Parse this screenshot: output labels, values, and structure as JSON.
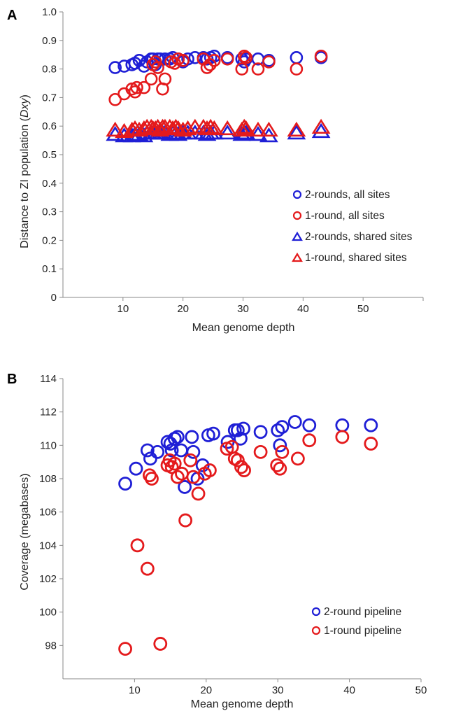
{
  "chart_data": [
    {
      "type": "scatter",
      "panel": "A",
      "xlabel": "Mean genome depth",
      "ylabel": "Distance to ZI population (Dxy)",
      "xlim": [
        0,
        60
      ],
      "ylim": [
        0,
        1.0
      ],
      "x_ticks": [
        "10",
        "20",
        "30",
        "40",
        "50"
      ],
      "x_tick_values": [
        10,
        20,
        30,
        40,
        50
      ],
      "y_ticks": [
        "0",
        "0.1",
        "0.2",
        "0.3",
        "0.4",
        "0.5",
        "0.6",
        "0.7",
        "0.8",
        "0.9",
        "1.0"
      ],
      "y_tick_values": [
        0,
        0.1,
        0.2,
        0.3,
        0.4,
        0.5,
        0.6,
        0.7,
        0.8,
        0.9,
        1.0
      ],
      "legend_position": "right",
      "series": [
        {
          "name": "2-rounds, all sites",
          "marker": "circle",
          "color": "#1f1fd6",
          "x": [
            8.7,
            10.2,
            11.5,
            12.0,
            12.7,
            13.5,
            14.0,
            14.7,
            15.0,
            15.4,
            15.8,
            16.2,
            17.0,
            17.8,
            18.3,
            19.2,
            20.0,
            20.8,
            22.0,
            23.4,
            24.0,
            24.6,
            25.2,
            27.4,
            29.8,
            30.2,
            30.5,
            32.5,
            34.3,
            38.9,
            43.0
          ],
          "y": [
            0.805,
            0.81,
            0.815,
            0.82,
            0.83,
            0.81,
            0.825,
            0.835,
            0.835,
            0.815,
            0.835,
            0.835,
            0.835,
            0.835,
            0.84,
            0.835,
            0.825,
            0.835,
            0.84,
            0.84,
            0.835,
            0.84,
            0.845,
            0.84,
            0.835,
            0.825,
            0.835,
            0.835,
            0.83,
            0.84,
            0.84
          ]
        },
        {
          "name": "1-round, all sites",
          "marker": "circle",
          "color": "#e41a1c",
          "x": [
            8.7,
            10.2,
            11.5,
            12.0,
            12.3,
            13.5,
            14.7,
            15.0,
            15.4,
            15.8,
            16.6,
            17.0,
            18.0,
            18.6,
            19.2,
            20.0,
            23.4,
            24.0,
            24.5,
            25.2,
            27.4,
            29.8,
            30.2,
            30.5,
            32.5,
            34.3,
            38.9,
            43.0
          ],
          "y": [
            0.693,
            0.713,
            0.73,
            0.72,
            0.735,
            0.735,
            0.765,
            0.815,
            0.825,
            0.805,
            0.73,
            0.765,
            0.825,
            0.82,
            0.835,
            0.83,
            0.835,
            0.805,
            0.815,
            0.83,
            0.835,
            0.8,
            0.845,
            0.84,
            0.8,
            0.825,
            0.8,
            0.845
          ]
        },
        {
          "name": "2-rounds, shared sites",
          "marker": "triangle",
          "color": "#1f1fd6",
          "x": [
            8.7,
            10.2,
            11.5,
            12.0,
            12.7,
            13.5,
            14.0,
            14.7,
            15.0,
            15.4,
            15.8,
            16.2,
            16.6,
            17.0,
            17.8,
            18.3,
            18.8,
            19.2,
            20.0,
            20.8,
            22.0,
            23.4,
            24.0,
            24.6,
            25.2,
            27.4,
            29.8,
            30.2,
            30.5,
            32.5,
            34.3,
            38.9,
            43.0
          ],
          "y": [
            0.57,
            0.565,
            0.565,
            0.57,
            0.57,
            0.565,
            0.575,
            0.575,
            0.575,
            0.575,
            0.575,
            0.575,
            0.575,
            0.575,
            0.57,
            0.575,
            0.575,
            0.57,
            0.575,
            0.575,
            0.575,
            0.575,
            0.57,
            0.575,
            0.575,
            0.575,
            0.57,
            0.575,
            0.575,
            0.57,
            0.565,
            0.575,
            0.58
          ]
        },
        {
          "name": "1-round, shared sites",
          "marker": "triangle",
          "color": "#e41a1c",
          "x": [
            8.7,
            10.2,
            11.5,
            12.0,
            12.7,
            13.5,
            14.0,
            14.7,
            15.0,
            15.4,
            15.8,
            16.2,
            16.6,
            17.0,
            17.8,
            18.3,
            18.8,
            19.2,
            20.0,
            20.8,
            22.0,
            23.4,
            24.0,
            24.6,
            25.2,
            27.4,
            29.8,
            30.2,
            30.5,
            32.5,
            34.3,
            38.9,
            43.0
          ],
          "y": [
            0.585,
            0.58,
            0.585,
            0.59,
            0.585,
            0.59,
            0.595,
            0.595,
            0.59,
            0.59,
            0.595,
            0.585,
            0.595,
            0.595,
            0.595,
            0.59,
            0.595,
            0.59,
            0.585,
            0.59,
            0.595,
            0.595,
            0.59,
            0.595,
            0.59,
            0.59,
            0.585,
            0.595,
            0.59,
            0.585,
            0.585,
            0.585,
            0.595
          ]
        }
      ]
    },
    {
      "type": "scatter",
      "panel": "B",
      "xlabel": "Mean genome depth",
      "ylabel": "Coverage (megabases)",
      "xlim": [
        0,
        50
      ],
      "ylim": [
        96,
        114
      ],
      "x_ticks": [
        "10",
        "20",
        "30",
        "40",
        "50"
      ],
      "x_tick_values": [
        10,
        20,
        30,
        40,
        50
      ],
      "y_ticks": [
        "98",
        "100",
        "102",
        "104",
        "106",
        "108",
        "110",
        "112",
        "114"
      ],
      "y_tick_values": [
        98,
        100,
        102,
        104,
        106,
        108,
        110,
        112,
        114
      ],
      "legend_position": "bottom-right",
      "series": [
        {
          "name": "2-round pipeline",
          "marker": "circle",
          "color": "#1f1fd6",
          "x": [
            8.7,
            10.2,
            11.8,
            12.2,
            13.2,
            14.6,
            15.0,
            15.2,
            15.6,
            16.0,
            16.5,
            17.0,
            18.0,
            18.2,
            18.8,
            19.5,
            20.3,
            21.0,
            23.0,
            24.0,
            24.4,
            24.8,
            25.2,
            27.6,
            30.0,
            30.3,
            30.6,
            32.4,
            34.4,
            39.0,
            43.0
          ],
          "y": [
            107.7,
            108.6,
            109.7,
            109.2,
            109.6,
            110.2,
            110.1,
            109.7,
            110.4,
            110.5,
            109.7,
            107.5,
            110.5,
            109.6,
            108.0,
            108.8,
            110.6,
            110.7,
            110.2,
            110.9,
            110.9,
            110.4,
            111.0,
            110.8,
            110.9,
            110.0,
            111.1,
            111.4,
            111.2,
            111.2,
            111.2
          ]
        },
        {
          "name": "1-round pipeline",
          "marker": "circle",
          "color": "#e41a1c",
          "x": [
            8.7,
            10.4,
            11.8,
            12.1,
            12.4,
            13.6,
            14.6,
            14.9,
            15.2,
            15.6,
            16.0,
            16.6,
            17.1,
            17.8,
            18.2,
            18.9,
            19.8,
            20.5,
            22.9,
            23.6,
            24.0,
            24.4,
            24.9,
            25.3,
            27.6,
            29.9,
            30.3,
            30.6,
            32.8,
            34.4,
            39.0,
            43.0
          ],
          "y": [
            97.8,
            104.0,
            102.6,
            108.2,
            108.0,
            98.1,
            108.8,
            109.1,
            108.7,
            108.9,
            108.1,
            108.3,
            105.5,
            109.1,
            108.1,
            107.1,
            108.3,
            108.5,
            109.8,
            109.9,
            109.2,
            109.1,
            108.7,
            108.5,
            109.6,
            108.8,
            108.6,
            109.6,
            109.2,
            110.3,
            110.5,
            110.1
          ]
        }
      ]
    }
  ],
  "page": {
    "panel_a_letter": "A",
    "panel_b_letter": "B",
    "panel_a_ylabel_main": "Distance to ZI population (",
    "panel_a_ylabel_italic": "Dxy",
    "panel_a_ylabel_close": ")"
  }
}
